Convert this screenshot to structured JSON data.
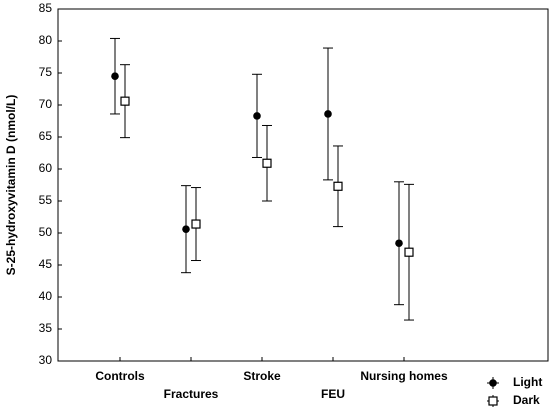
{
  "chart_data": {
    "type": "errorbar",
    "ylabel": "S-25-hydroxyvitamin D (nmol/L)",
    "categories": [
      "Controls",
      "Fractures",
      "Stroke",
      "FEU",
      "Nursing homes"
    ],
    "series": [
      {
        "name": "Light",
        "color": "#000000",
        "marker": "filled-circle",
        "values": [
          74.5,
          50.6,
          68.3,
          68.6,
          48.4
        ],
        "errors": [
          5.9,
          6.8,
          6.5,
          10.3,
          9.6
        ]
      },
      {
        "name": "Dark",
        "color": "#000000",
        "marker": "open-square",
        "values": [
          70.6,
          51.4,
          60.9,
          57.3,
          47.0
        ],
        "errors": [
          5.7,
          5.7,
          5.9,
          6.3,
          10.6
        ]
      }
    ],
    "ylim": [
      30,
      85
    ],
    "yticks": [
      30,
      35,
      40,
      45,
      50,
      55,
      60,
      65,
      70,
      75,
      80,
      85
    ],
    "grid": false,
    "legend": "bottom-right"
  }
}
